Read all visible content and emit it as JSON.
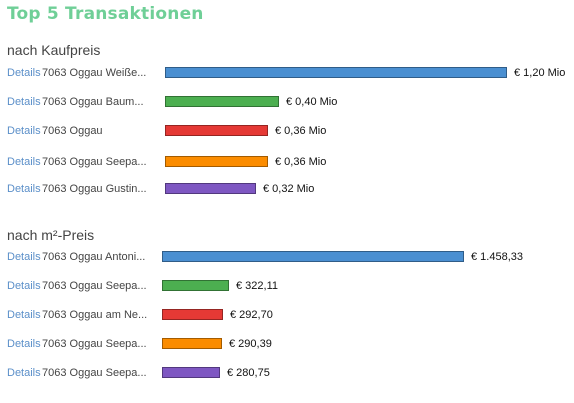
{
  "page": {
    "title": "Top 5 Transaktionen",
    "details_label": "Details"
  },
  "sections": [
    {
      "title": "nach Kaufpreis",
      "rows": [
        {
          "label": "7063 Oggau Weiße...",
          "value": 1.2,
          "value_label": "€ 1,20 Mio",
          "color": "#4a8fd1"
        },
        {
          "label": "7063 Oggau Baum...",
          "value": 0.4,
          "value_label": "€ 0,40 Mio",
          "color": "#4caf50"
        },
        {
          "label": "7063 Oggau",
          "value": 0.36,
          "value_label": "€ 0,36 Mio",
          "color": "#e53935"
        },
        {
          "label": "7063 Oggau Seepa...",
          "value": 0.36,
          "value_label": "€ 0,36 Mio",
          "color": "#fb8c00"
        },
        {
          "label": "7063 Oggau Gustin...",
          "value": 0.32,
          "value_label": "€ 0,32 Mio",
          "color": "#7e57c2"
        }
      ]
    },
    {
      "title": "nach m²-Preis",
      "rows": [
        {
          "label": "7063 Oggau Antoni...",
          "value": 1458.33,
          "value_label": "€ 1.458,33",
          "color": "#4a8fd1"
        },
        {
          "label": "7063 Oggau Seepa...",
          "value": 322.11,
          "value_label": "€ 322,11",
          "color": "#4caf50"
        },
        {
          "label": "7063 Oggau am Ne...",
          "value": 292.7,
          "value_label": "€ 292,70",
          "color": "#e53935"
        },
        {
          "label": "7063 Oggau Seepa...",
          "value": 290.39,
          "value_label": "€ 290,39",
          "color": "#fb8c00"
        },
        {
          "label": "7063 Oggau Seepa...",
          "value": 280.75,
          "value_label": "€ 280,75",
          "color": "#7e57c2"
        }
      ]
    }
  ],
  "chart_data": [
    {
      "type": "bar",
      "title": "nach Kaufpreis",
      "categories": [
        "7063 Oggau Weiße...",
        "7063 Oggau Baum...",
        "7063 Oggau",
        "7063 Oggau Seepa...",
        "7063 Oggau Gustin..."
      ],
      "values": [
        1.2,
        0.4,
        0.36,
        0.36,
        0.32
      ],
      "value_labels": [
        "€ 1,20 Mio",
        "€ 0,40 Mio",
        "€ 0,36 Mio",
        "€ 0,36 Mio",
        "€ 0,32 Mio"
      ],
      "orientation": "horizontal",
      "xlabel": "",
      "ylabel": ""
    },
    {
      "type": "bar",
      "title": "nach m²-Preis",
      "categories": [
        "7063 Oggau Antoni...",
        "7063 Oggau Seepa...",
        "7063 Oggau am Ne...",
        "7063 Oggau Seepa...",
        "7063 Oggau Seepa..."
      ],
      "values": [
        1458.33,
        322.11,
        292.7,
        290.39,
        280.75
      ],
      "value_labels": [
        "€ 1.458,33",
        "€ 322,11",
        "€ 292,70",
        "€ 290,39",
        "€ 280,75"
      ],
      "orientation": "horizontal",
      "xlabel": "",
      "ylabel": ""
    }
  ]
}
